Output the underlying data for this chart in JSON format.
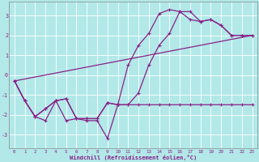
{
  "xlabel": "Windchill (Refroidissement éolien,°C)",
  "bg_color": "#b2e8e8",
  "line_color": "#882288",
  "grid_color": "#aadddd",
  "xlim": [
    -0.5,
    23.5
  ],
  "ylim": [
    -3.7,
    3.7
  ],
  "xticks": [
    0,
    1,
    2,
    3,
    4,
    5,
    6,
    7,
    8,
    9,
    10,
    11,
    12,
    13,
    14,
    15,
    16,
    17,
    18,
    19,
    20,
    21,
    22,
    23
  ],
  "yticks": [
    -3,
    -2,
    -1,
    0,
    1,
    2,
    3
  ],
  "series1_x": [
    0,
    1,
    2,
    3,
    4,
    5,
    6,
    7,
    8,
    9,
    10,
    11,
    12,
    13,
    14,
    15,
    16,
    17,
    18,
    19,
    20,
    21,
    22,
    23
  ],
  "series1_y": [
    -0.3,
    -1.3,
    -2.1,
    -1.7,
    -1.3,
    -1.2,
    -2.2,
    -2.2,
    -2.2,
    -1.4,
    -1.5,
    -1.5,
    -1.5,
    -1.5,
    -1.5,
    -1.5,
    -1.5,
    -1.5,
    -1.5,
    -1.5,
    -1.5,
    -1.5,
    -1.5,
    -1.5
  ],
  "series2_x": [
    0,
    1,
    2,
    3,
    4,
    5,
    6,
    7,
    8,
    9,
    10,
    11,
    12,
    13,
    14,
    15,
    16,
    17,
    18,
    19,
    20,
    21,
    22,
    23
  ],
  "series2_y": [
    -0.3,
    -1.3,
    -2.1,
    -1.7,
    -1.3,
    -1.2,
    -2.2,
    -2.2,
    -2.2,
    -1.4,
    -1.5,
    0.5,
    1.5,
    2.1,
    3.1,
    3.3,
    3.2,
    2.8,
    2.7,
    2.8,
    2.5,
    2.0,
    2.0,
    2.0
  ],
  "series3_x": [
    0,
    1,
    2,
    3,
    4,
    5,
    6,
    7,
    8,
    9,
    10,
    11,
    12,
    13,
    14,
    15,
    16,
    17,
    18,
    19,
    20,
    21,
    22,
    23
  ],
  "series3_y": [
    -0.3,
    -1.3,
    -2.1,
    -2.3,
    -1.3,
    -2.3,
    -2.2,
    -2.3,
    -2.3,
    -3.2,
    -1.5,
    -1.5,
    -0.9,
    0.5,
    1.5,
    2.1,
    3.2,
    3.2,
    2.7,
    2.8,
    2.5,
    2.0,
    2.0,
    2.0
  ],
  "series4_x": [
    0,
    23
  ],
  "series4_y": [
    -0.3,
    2.0
  ]
}
